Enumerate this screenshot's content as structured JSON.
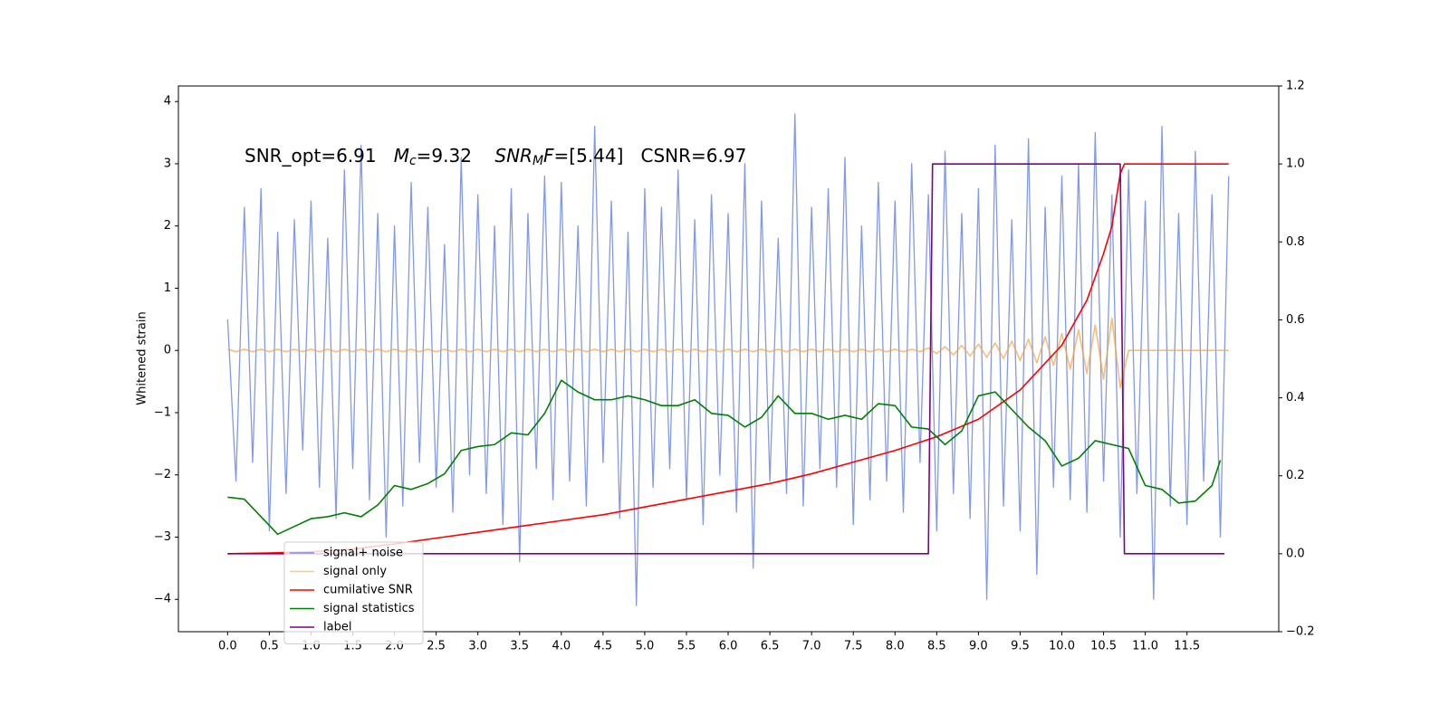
{
  "chart_data": {
    "type": "line",
    "ylabel": "Whitened strain",
    "annotation": [
      {
        "text": "SNR_opt=6.91   ",
        "style": "normal"
      },
      {
        "text": "M",
        "style": "italic"
      },
      {
        "text": "c",
        "style": "sub"
      },
      {
        "text": "=9.32    ",
        "style": "normal"
      },
      {
        "text": "SNR",
        "style": "italic"
      },
      {
        "text": "M",
        "style": "sub"
      },
      {
        "text": "F",
        "style": "italic"
      },
      {
        "text": "=[5.44]   CSNR=6.97",
        "style": "normal"
      }
    ],
    "xlim": [
      -0.59,
      12.6
    ],
    "ylim": [
      -4.52,
      4.25
    ],
    "y2lim": [
      -0.2,
      1.2
    ],
    "xticks": [
      {
        "value": 0,
        "label": "0.0"
      },
      0.5,
      {
        "value": 1,
        "label": "1.0"
      },
      1.5,
      {
        "value": 2,
        "label": "2.0"
      },
      2.5,
      {
        "value": 3,
        "label": "3.0"
      },
      3.5,
      {
        "value": 4,
        "label": "4.0"
      },
      4.5,
      {
        "value": 5,
        "label": "5.0"
      },
      5.5,
      {
        "value": 6,
        "label": "6.0"
      },
      6.5,
      {
        "value": 7,
        "label": "7.0"
      },
      7.5,
      {
        "value": 8,
        "label": "8.0"
      },
      8.5,
      {
        "value": 9,
        "label": "9.0"
      },
      9.5,
      {
        "value": 10,
        "label": "10.0"
      },
      10.5,
      {
        "value": 11,
        "label": "11.0"
      },
      11.5
    ],
    "yticks": [
      {
        "value": -4,
        "label": "−4"
      },
      {
        "value": -3,
        "label": "−3"
      },
      {
        "value": -2,
        "label": "−2"
      },
      {
        "value": -1,
        "label": "−1"
      },
      0,
      1,
      2,
      3,
      4
    ],
    "y2ticks": [
      {
        "value": -0.2,
        "label": "−0.2"
      },
      {
        "value": 0,
        "label": "0.0"
      },
      0.2,
      0.4,
      0.6,
      0.8,
      {
        "value": 1,
        "label": "1.0"
      },
      {
        "value": 1.2,
        "label": "1.2"
      }
    ],
    "legend_loc": "lower left",
    "series": [
      {
        "name": "signal+ noise",
        "color": "#7b93e8",
        "x": [
          0,
          0.1,
          0.2,
          0.3,
          0.4,
          0.5,
          0.6,
          0.7,
          0.8,
          0.9,
          1,
          1.1,
          1.2,
          1.3,
          1.4,
          1.5,
          1.6,
          1.7,
          1.8,
          1.9,
          2,
          2.1,
          2.2,
          2.3,
          2.4,
          2.5,
          2.6,
          2.7,
          2.8,
          2.9,
          3,
          3.1,
          3.2,
          3.3,
          3.4,
          3.5,
          3.6,
          3.7,
          3.8,
          3.9,
          4,
          4.1,
          4.2,
          4.3,
          4.4,
          4.5,
          4.6,
          4.7,
          4.8,
          4.9,
          5,
          5.1,
          5.2,
          5.3,
          5.4,
          5.5,
          5.6,
          5.7,
          5.8,
          5.9,
          6,
          6.1,
          6.2,
          6.3,
          6.4,
          6.5,
          6.6,
          6.7,
          6.8,
          6.9,
          7,
          7.1,
          7.2,
          7.3,
          7.4,
          7.5,
          7.6,
          7.7,
          7.8,
          7.9,
          8,
          8.1,
          8.2,
          8.3,
          8.4,
          8.5,
          8.6,
          8.7,
          8.8,
          8.9,
          9,
          9.1,
          9.2,
          9.3,
          9.4,
          9.5,
          9.6,
          9.7,
          9.8,
          9.9,
          10,
          10.1,
          10.2,
          10.3,
          10.4,
          10.5,
          10.6,
          10.7,
          10.8,
          10.9,
          11,
          11.1,
          11.2,
          11.3,
          11.4,
          11.5,
          11.6,
          11.7,
          11.8,
          11.9,
          12
        ],
        "values": [
          0.5,
          -2.1,
          2.3,
          -1.8,
          2.6,
          -2.9,
          1.9,
          -2.3,
          2.1,
          -1.6,
          2.4,
          -2.2,
          1.8,
          -2.7,
          2.9,
          -1.9,
          3.3,
          -2.4,
          2.2,
          -3.0,
          2.0,
          -2.5,
          2.7,
          -1.8,
          2.3,
          -2.2,
          1.7,
          -2.6,
          3.1,
          -2.0,
          2.5,
          -2.3,
          2.0,
          -2.8,
          2.6,
          -3.4,
          2.2,
          -1.9,
          2.8,
          -2.4,
          2.7,
          -2.1,
          2.0,
          -2.5,
          3.6,
          -1.8,
          2.4,
          -2.7,
          1.9,
          -4.1,
          2.6,
          -2.2,
          2.3,
          -1.9,
          2.9,
          -2.4,
          2.1,
          -2.8,
          2.5,
          -2.0,
          2.2,
          -2.6,
          3.0,
          -3.5,
          2.4,
          -2.1,
          1.8,
          -2.3,
          3.8,
          -2.5,
          2.3,
          -1.9,
          2.6,
          -2.2,
          3.1,
          -2.8,
          2.0,
          -2.4,
          2.7,
          -2.1,
          2.4,
          -2.6,
          3.0,
          -1.8,
          2.5,
          -2.9,
          3.2,
          -2.3,
          2.2,
          -2.7,
          2.6,
          -4.0,
          3.3,
          -2.5,
          2.1,
          -2.9,
          3.4,
          -3.6,
          2.3,
          -2.2,
          2.8,
          -2.4,
          3.0,
          -2.6,
          3.5,
          -2.1,
          2.5,
          -3.0,
          2.9,
          -2.3,
          2.4,
          -4.0,
          3.6,
          -2.5,
          2.2,
          -2.8,
          3.2,
          -2.1,
          2.5,
          -3.0,
          2.8
        ]
      },
      {
        "name": "signal only",
        "color": "#f7a338",
        "x": [
          0,
          0.1,
          0.2,
          0.3,
          0.4,
          0.5,
          0.6,
          0.7,
          0.8,
          0.9,
          1,
          1.1,
          1.2,
          1.3,
          1.4,
          1.5,
          1.6,
          1.7,
          1.8,
          1.9,
          2,
          2.1,
          2.2,
          2.3,
          2.4,
          2.5,
          2.6,
          2.7,
          2.8,
          2.9,
          3,
          3.1,
          3.2,
          3.3,
          3.4,
          3.5,
          3.6,
          3.7,
          3.8,
          3.9,
          4,
          4.1,
          4.2,
          4.3,
          4.4,
          4.5,
          4.6,
          4.7,
          4.8,
          4.9,
          5,
          5.1,
          5.2,
          5.3,
          5.4,
          5.5,
          5.6,
          5.7,
          5.8,
          5.9,
          6,
          6.1,
          6.2,
          6.3,
          6.4,
          6.5,
          6.6,
          6.7,
          6.8,
          6.9,
          7,
          7.1,
          7.2,
          7.3,
          7.4,
          7.5,
          7.6,
          7.7,
          7.8,
          7.9,
          8,
          8.1,
          8.2,
          8.3,
          8.4,
          8.5,
          8.6,
          8.7,
          8.8,
          8.9,
          9,
          9.1,
          9.2,
          9.3,
          9.4,
          9.5,
          9.6,
          9.7,
          9.8,
          9.9,
          10,
          10.1,
          10.2,
          10.3,
          10.4,
          10.5,
          10.6,
          10.7,
          10.8,
          10.9,
          11,
          11.1,
          11.2,
          11.3,
          11.4,
          11.5,
          11.6,
          11.7,
          11.8,
          11.9,
          12
        ],
        "values": [
          0.02,
          -0.02,
          0.02,
          -0.02,
          0.02,
          -0.02,
          0.02,
          -0.02,
          0.02,
          -0.02,
          0.02,
          -0.02,
          0.02,
          -0.02,
          0.02,
          -0.02,
          0.02,
          -0.02,
          0.02,
          -0.02,
          0.02,
          -0.02,
          0.02,
          -0.02,
          0.02,
          -0.02,
          0.02,
          -0.02,
          0.02,
          -0.02,
          0.02,
          -0.02,
          0.02,
          -0.02,
          0.02,
          -0.02,
          0.02,
          -0.02,
          0.02,
          -0.02,
          0.02,
          -0.02,
          0.02,
          -0.02,
          0.02,
          -0.02,
          0.02,
          -0.02,
          0.02,
          -0.02,
          0.02,
          -0.02,
          0.02,
          -0.02,
          0.02,
          -0.02,
          0.02,
          -0.02,
          0.02,
          -0.02,
          0.02,
          -0.02,
          0.02,
          -0.02,
          0.02,
          -0.02,
          0.02,
          -0.02,
          0.02,
          -0.02,
          0.02,
          -0.02,
          0.02,
          -0.02,
          0.02,
          -0.02,
          0.02,
          -0.02,
          0.02,
          -0.02,
          0.02,
          -0.02,
          0.02,
          -0.02,
          0.04,
          -0.05,
          0.06,
          -0.07,
          0.08,
          -0.09,
          0.1,
          -0.11,
          0.12,
          -0.13,
          0.15,
          -0.16,
          0.18,
          -0.2,
          0.22,
          -0.24,
          0.27,
          -0.3,
          0.33,
          -0.37,
          0.41,
          -0.46,
          0.52,
          -0.6,
          0,
          0,
          0,
          0,
          0,
          0,
          0,
          0,
          0,
          0,
          0,
          0,
          0
        ]
      },
      {
        "name": "cumilative SNR",
        "color": "red",
        "axis": "y2",
        "x": [
          0,
          0.5,
          1,
          1.5,
          2,
          2.5,
          3,
          3.5,
          4,
          4.5,
          5,
          5.5,
          6,
          6.5,
          7,
          7.5,
          8,
          8.5,
          9,
          9.5,
          10,
          10.3,
          10.5,
          10.6,
          10.7,
          10.75,
          12
        ],
        "values": [
          0,
          0.002,
          0.005,
          0.012,
          0.025,
          0.04,
          0.055,
          0.07,
          0.085,
          0.1,
          0.12,
          0.14,
          0.16,
          0.18,
          0.205,
          0.235,
          0.265,
          0.3,
          0.345,
          0.42,
          0.535,
          0.65,
          0.77,
          0.84,
          0.975,
          1.0,
          1.0
        ]
      },
      {
        "name": "signal statistics",
        "color": "green",
        "axis": "y2",
        "x": [
          0,
          0.2,
          0.4,
          0.6,
          0.8,
          1,
          1.2,
          1.4,
          1.6,
          1.8,
          2,
          2.2,
          2.4,
          2.6,
          2.8,
          3,
          3.2,
          3.4,
          3.6,
          3.8,
          4,
          4.2,
          4.4,
          4.6,
          4.8,
          5,
          5.2,
          5.4,
          5.6,
          5.8,
          6,
          6.2,
          6.4,
          6.6,
          6.8,
          7,
          7.2,
          7.4,
          7.6,
          7.8,
          8,
          8.2,
          8.4,
          8.6,
          8.8,
          9,
          9.2,
          9.4,
          9.6,
          9.8,
          10,
          10.2,
          10.4,
          10.6,
          10.8,
          11,
          11.2,
          11.4,
          11.6,
          11.8,
          11.9
        ],
        "values": [
          0.145,
          0.14,
          0.095,
          0.05,
          0.07,
          0.09,
          0.095,
          0.105,
          0.095,
          0.125,
          0.175,
          0.165,
          0.18,
          0.205,
          0.265,
          0.275,
          0.28,
          0.31,
          0.305,
          0.36,
          0.445,
          0.415,
          0.395,
          0.395,
          0.405,
          0.395,
          0.38,
          0.38,
          0.395,
          0.36,
          0.355,
          0.325,
          0.35,
          0.405,
          0.36,
          0.36,
          0.345,
          0.355,
          0.345,
          0.385,
          0.38,
          0.325,
          0.32,
          0.28,
          0.315,
          0.405,
          0.415,
          0.37,
          0.325,
          0.29,
          0.225,
          0.245,
          0.29,
          0.28,
          0.27,
          0.175,
          0.165,
          0.13,
          0.135,
          0.175,
          0.24
        ]
      },
      {
        "name": "label",
        "color": "purple",
        "axis": "y2",
        "x": [
          0,
          8.4,
          8.45,
          10.7,
          10.75,
          11.95
        ],
        "values": [
          0,
          0,
          1,
          1,
          0,
          0
        ]
      }
    ]
  }
}
